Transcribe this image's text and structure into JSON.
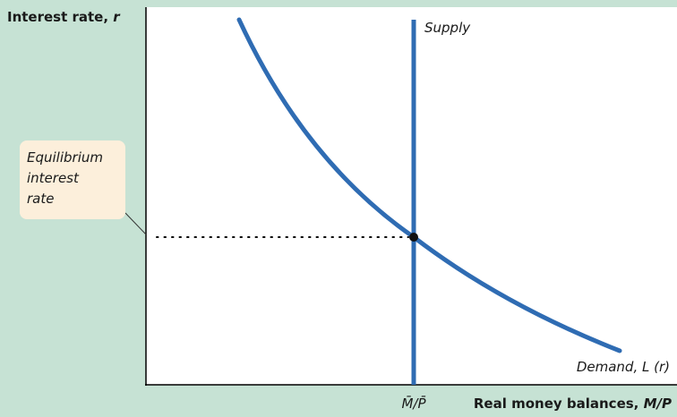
{
  "y_axis": {
    "label": "Interest rate, ",
    "variable": "r"
  },
  "x_axis": {
    "label": "Real money balances, ",
    "variable": "M/P",
    "supply_level": "M̄/P̄"
  },
  "supply_label": "Supply",
  "demand_label": "Demand, L (r)",
  "callout": {
    "lines": [
      "Equilibrium",
      "interest",
      "rate"
    ]
  }
}
